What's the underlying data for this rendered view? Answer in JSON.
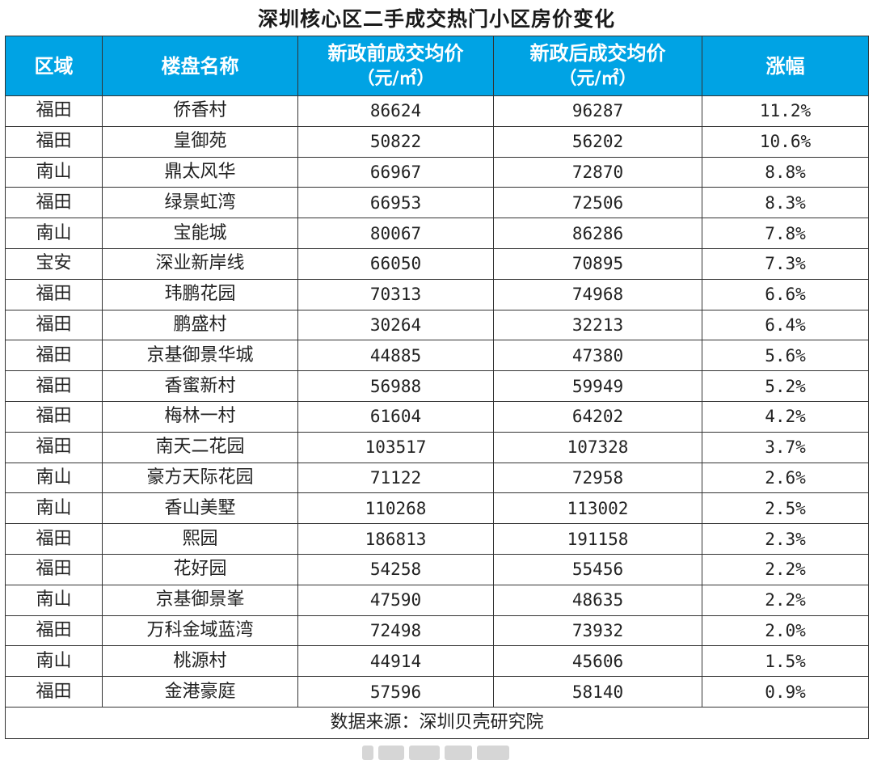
{
  "title": "深圳核心区二手成交热门小区房价变化",
  "chart_data": {
    "type": "table",
    "title": "深圳核心区二手成交热门小区房价变化",
    "columns": [
      {
        "label": "区域",
        "unit": ""
      },
      {
        "label": "楼盘名称",
        "unit": ""
      },
      {
        "label": "新政前成交均价",
        "unit": "（元/㎡）"
      },
      {
        "label": "新政后成交均价",
        "unit": "（元/㎡）"
      },
      {
        "label": "涨幅",
        "unit": ""
      }
    ],
    "rows": [
      [
        "福田",
        "侨香村",
        "86624",
        "96287",
        "11.2%"
      ],
      [
        "福田",
        "皇御苑",
        "50822",
        "56202",
        "10.6%"
      ],
      [
        "南山",
        "鼎太风华",
        "66967",
        "72870",
        "8.8%"
      ],
      [
        "福田",
        "绿景虹湾",
        "66953",
        "72506",
        "8.3%"
      ],
      [
        "南山",
        "宝能城",
        "80067",
        "86286",
        "7.8%"
      ],
      [
        "宝安",
        "深业新岸线",
        "66050",
        "70895",
        "7.3%"
      ],
      [
        "福田",
        "玮鹏花园",
        "70313",
        "74968",
        "6.6%"
      ],
      [
        "福田",
        "鹏盛村",
        "30264",
        "32213",
        "6.4%"
      ],
      [
        "福田",
        "京基御景华城",
        "44885",
        "47380",
        "5.6%"
      ],
      [
        "福田",
        "香蜜新村",
        "56988",
        "59949",
        "5.2%"
      ],
      [
        "福田",
        "梅林一村",
        "61604",
        "64202",
        "4.2%"
      ],
      [
        "福田",
        "南天二花园",
        "103517",
        "107328",
        "3.7%"
      ],
      [
        "南山",
        "豪方天际花园",
        "71122",
        "72958",
        "2.6%"
      ],
      [
        "南山",
        "香山美墅",
        "110268",
        "113002",
        "2.5%"
      ],
      [
        "福田",
        "熙园",
        "186813",
        "191158",
        "2.3%"
      ],
      [
        "福田",
        "花好园",
        "54258",
        "55456",
        "2.2%"
      ],
      [
        "南山",
        "京基御景峯",
        "47590",
        "48635",
        "2.2%"
      ],
      [
        "福田",
        "万科金域蓝湾",
        "72498",
        "73932",
        "2.0%"
      ],
      [
        "南山",
        "桃源村",
        "44914",
        "45606",
        "1.5%"
      ],
      [
        "福田",
        "金港豪庭",
        "57596",
        "58140",
        "0.9%"
      ]
    ],
    "source": "数据来源：深圳贝壳研究院"
  },
  "colors": {
    "header_background": "#00a3e4",
    "header_text": "#ffffff",
    "border": "#333333",
    "watermark": "#cfcfcf"
  }
}
